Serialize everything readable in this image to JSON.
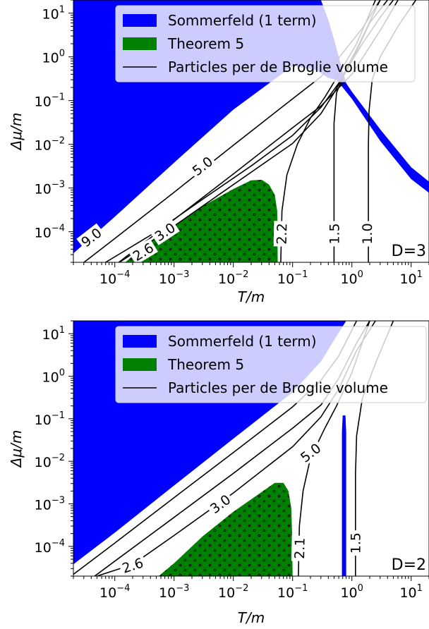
{
  "chart_data": [
    {
      "type": "area",
      "panel_label": "D=3",
      "xlabel": "T/m",
      "ylabel": "Δμ/m",
      "xscale": "log",
      "yscale": "log",
      "xlim": [
        2e-05,
        20
      ],
      "ylim": [
        2e-05,
        20
      ],
      "x_ticks": [
        {
          "exp": -4,
          "base": "10",
          "sup": "−4"
        },
        {
          "exp": -3,
          "base": "10",
          "sup": "−3"
        },
        {
          "exp": -2,
          "base": "10",
          "sup": "−2"
        },
        {
          "exp": -1,
          "base": "10",
          "sup": "−1"
        },
        {
          "exp": 0,
          "base": "10",
          "sup": "0"
        },
        {
          "exp": 1,
          "base": "10",
          "sup": "1"
        }
      ],
      "y_ticks": [
        {
          "exp": -4,
          "base": "10",
          "sup": "−4"
        },
        {
          "exp": -3,
          "base": "10",
          "sup": "−3"
        },
        {
          "exp": -2,
          "base": "10",
          "sup": "−2"
        },
        {
          "exp": -1,
          "base": "10",
          "sup": "−1"
        },
        {
          "exp": 0,
          "base": "10",
          "sup": "0"
        },
        {
          "exp": 1,
          "base": "10",
          "sup": "1"
        }
      ],
      "legend": {
        "position": "top-right",
        "entries": [
          {
            "label": "Sommerfeld (1 term)",
            "kind": "patch",
            "color": "#0000ff"
          },
          {
            "label": "Theorem 5",
            "kind": "patch",
            "color": "#008000"
          },
          {
            "label": "Particles per de Broglie volume",
            "kind": "line",
            "color": "#000000"
          }
        ]
      },
      "sommerfeld_region": [
        [
          2e-05,
          3.2e-05
        ],
        [
          0.0001,
          0.00022
        ],
        [
          0.001,
          0.0038
        ],
        [
          0.01,
          0.062
        ],
        [
          0.1,
          0.62
        ],
        [
          0.25,
          0.5
        ],
        [
          0.4,
          0.33
        ],
        [
          0.55,
          0.3
        ],
        [
          1.0,
          0.11
        ],
        [
          3.0,
          0.012
        ],
        [
          10,
          0.0016
        ],
        [
          20,
          0.00078
        ],
        [
          20,
          0.0014
        ],
        [
          10,
          0.003
        ],
        [
          3.0,
          0.022
        ],
        [
          1.0,
          0.16
        ],
        [
          0.8,
          0.25
        ],
        [
          0.6,
          1.0
        ],
        [
          0.5,
          2.5
        ],
        [
          0.4,
          7
        ],
        [
          0.3,
          20
        ],
        [
          2e-05,
          20
        ]
      ],
      "theorem5_region": [
        [
          0.00015,
          2e-05
        ],
        [
          0.0003,
          4.5e-05
        ],
        [
          0.001,
          0.00014
        ],
        [
          0.003,
          0.00038
        ],
        [
          0.01,
          0.00095
        ],
        [
          0.02,
          0.0015
        ],
        [
          0.03,
          0.00155
        ],
        [
          0.04,
          0.0012
        ],
        [
          0.05,
          0.0007
        ],
        [
          0.055,
          0.0003
        ],
        [
          0.056,
          2e-05
        ]
      ],
      "contours": [
        {
          "level": "9.0",
          "label_at": [
            4e-05,
            7.5e-05
          ],
          "points": [
            [
              2e-05,
              1.3e-05
            ],
            [
              0.0001,
              7e-05
            ],
            [
              0.001,
              0.0008
            ],
            [
              0.01,
              0.0095
            ],
            [
              0.1,
              0.11
            ],
            [
              0.3,
              0.35
            ],
            [
              0.6,
              0.95
            ],
            [
              1.5,
              4.5
            ],
            [
              3,
              20
            ]
          ]
        },
        {
          "level": "5.0",
          "label_at": [
            0.003,
            0.0032
          ],
          "points": [
            [
              2e-05,
              3.2e-06
            ],
            [
              0.0001,
              1.7e-05
            ],
            [
              0.001,
              0.00019
            ],
            [
              0.01,
              0.0021
            ],
            [
              0.1,
              0.024
            ],
            [
              0.3,
              0.075
            ],
            [
              1,
              0.4
            ],
            [
              3,
              4
            ],
            [
              6,
              20
            ]
          ]
        },
        {
          "level": "3.0",
          "label_at": [
            0.0007,
            0.0001
          ],
          "points": [
            [
              0.00012,
              2e-05
            ],
            [
              0.001,
              0.000135
            ],
            [
              0.01,
              0.0012
            ],
            [
              0.1,
              0.0105
            ],
            [
              0.3,
              0.05
            ],
            [
              0.5,
              0.15
            ],
            [
              1,
              0.8
            ],
            [
              2,
              6
            ],
            [
              4,
              20
            ]
          ]
        },
        {
          "level": "2.6",
          "label_at": [
            0.0003,
            3.5e-05
          ],
          "points": [
            [
              7e-05,
              2e-05
            ],
            [
              0.0005,
              0.0001
            ],
            [
              0.003,
              0.00055
            ],
            [
              0.02,
              0.0032
            ],
            [
              0.1,
              0.016
            ],
            [
              0.3,
              0.07
            ],
            [
              0.6,
              0.25
            ],
            [
              1.2,
              1.5
            ],
            [
              3,
              20
            ]
          ]
        },
        {
          "level": "2.2",
          "label_at": [
            0.065,
            9e-05
          ],
          "points": [
            [
              0.063,
              2e-05
            ],
            [
              0.066,
              0.0003
            ],
            [
              0.08,
              0.002
            ],
            [
              0.12,
              0.01
            ],
            [
              0.2,
              0.04
            ],
            [
              0.35,
              0.12
            ],
            [
              0.6,
              0.4
            ],
            [
              1.2,
              2
            ],
            [
              2.5,
              20
            ]
          ]
        },
        {
          "level": "1.5",
          "label_at": [
            0.5,
            9e-05
          ],
          "points": [
            [
              0.5,
              2e-05
            ],
            [
              0.5,
              0.005
            ],
            [
              0.5,
              0.03
            ],
            [
              0.55,
              0.15
            ],
            [
              0.8,
              0.5
            ],
            [
              1.5,
              2
            ],
            [
              3,
              8
            ],
            [
              5,
              20
            ]
          ]
        },
        {
          "level": "1.0",
          "label_at": [
            1.8,
            9e-05
          ],
          "points": [
            [
              1.9,
              2e-05
            ],
            [
              1.9,
              0.01
            ],
            [
              1.95,
              0.06
            ],
            [
              2.2,
              0.3
            ],
            [
              3,
              1
            ],
            [
              6,
              5
            ],
            [
              12,
              20
            ]
          ]
        }
      ]
    },
    {
      "type": "area",
      "panel_label": "D=2",
      "xlabel": "T/m",
      "ylabel": "Δμ/m",
      "xscale": "log",
      "yscale": "log",
      "xlim": [
        2e-05,
        20
      ],
      "ylim": [
        2e-05,
        20
      ],
      "x_ticks": [
        {
          "exp": -4,
          "base": "10",
          "sup": "−4"
        },
        {
          "exp": -3,
          "base": "10",
          "sup": "−3"
        },
        {
          "exp": -2,
          "base": "10",
          "sup": "−2"
        },
        {
          "exp": -1,
          "base": "10",
          "sup": "−1"
        },
        {
          "exp": 0,
          "base": "10",
          "sup": "0"
        },
        {
          "exp": 1,
          "base": "10",
          "sup": "1"
        }
      ],
      "y_ticks": [
        {
          "exp": -4,
          "base": "10",
          "sup": "−4"
        },
        {
          "exp": -3,
          "base": "10",
          "sup": "−3"
        },
        {
          "exp": -2,
          "base": "10",
          "sup": "−2"
        },
        {
          "exp": -1,
          "base": "10",
          "sup": "−1"
        },
        {
          "exp": 0,
          "base": "10",
          "sup": "0"
        },
        {
          "exp": 1,
          "base": "10",
          "sup": "1"
        }
      ],
      "legend": {
        "position": "top-right",
        "entries": [
          {
            "label": "Sommerfeld (1 term)",
            "kind": "patch",
            "color": "#0000ff"
          },
          {
            "label": "Theorem 5",
            "kind": "patch",
            "color": "#008000"
          },
          {
            "label": "Particles per de Broglie volume",
            "kind": "line",
            "color": "#000000"
          }
        ]
      },
      "sommerfeld_region": [
        [
          2e-05,
          3.8e-05
        ],
        [
          0.0001,
          0.00021
        ],
        [
          0.001,
          0.0027
        ],
        [
          0.01,
          0.034
        ],
        [
          0.1,
          0.42
        ],
        [
          0.3,
          2.2
        ],
        [
          0.5,
          7
        ],
        [
          0.8,
          20
        ],
        [
          2e-05,
          20
        ]
      ],
      "sommerfeld_strip": [
        [
          0.68,
          2e-05
        ],
        [
          0.68,
          0.05
        ],
        [
          0.7,
          0.12
        ],
        [
          0.78,
          0.12
        ],
        [
          0.8,
          0.05
        ],
        [
          0.8,
          2e-05
        ]
      ],
      "theorem5_region": [
        [
          0.00055,
          2e-05
        ],
        [
          0.001,
          4e-05
        ],
        [
          0.003,
          0.00017
        ],
        [
          0.01,
          0.00065
        ],
        [
          0.03,
          0.0019
        ],
        [
          0.05,
          0.0031
        ],
        [
          0.07,
          0.0031
        ],
        [
          0.085,
          0.002
        ],
        [
          0.095,
          0.0008
        ],
        [
          0.098,
          0.0002
        ],
        [
          0.1,
          2e-05
        ]
      ],
      "contours": [
        {
          "level": "5.0",
          "label_at": [
            0.2,
            0.016
          ],
          "points": [
            [
              2e-05,
              2.2e-05
            ],
            [
              0.0001,
              0.00012
            ],
            [
              0.001,
              0.0014
            ],
            [
              0.01,
              0.016
            ],
            [
              0.1,
              0.19
            ],
            [
              0.3,
              0.8
            ],
            [
              0.6,
              3
            ],
            [
              1.2,
              20
            ]
          ]
        },
        {
          "level": "3.0",
          "label_at": [
            0.006,
            0.001
          ],
          "points": [
            [
              2e-05,
              8.5e-06
            ],
            [
              0.0001,
              4.5e-05
            ],
            [
              0.001,
              0.00048
            ],
            [
              0.01,
              0.0052
            ],
            [
              0.1,
              0.06
            ],
            [
              0.3,
              0.21
            ],
            [
              0.6,
              0.9
            ],
            [
              1.2,
              6
            ],
            [
              2,
              20
            ]
          ]
        },
        {
          "level": "2.6",
          "label_at": [
            0.0002,
            3.6e-05
          ],
          "points": [
            [
              5e-05,
              2e-05
            ],
            [
              0.0002,
              3.75e-05
            ],
            [
              0.001,
              0.00018
            ],
            [
              0.01,
              0.0018
            ],
            [
              0.1,
              0.022
            ],
            [
              0.3,
              0.11
            ],
            [
              0.6,
              0.5
            ],
            [
              1.2,
              4
            ],
            [
              2.5,
              20
            ]
          ]
        },
        {
          "level": "2.1",
          "label_at": [
            0.13,
            9e-05
          ],
          "points": [
            [
              0.125,
              2e-05
            ],
            [
              0.13,
              0.0003
            ],
            [
              0.15,
              0.002
            ],
            [
              0.2,
              0.012
            ],
            [
              0.35,
              0.06
            ],
            [
              0.55,
              0.2
            ],
            [
              1,
              1.2
            ],
            [
              2,
              20
            ]
          ]
        },
        {
          "level": "1.5",
          "label_at": [
            1.15,
            0.00012
          ],
          "points": [
            [
              1.15,
              2e-05
            ],
            [
              1.15,
              0.005
            ],
            [
              1.2,
              0.04
            ],
            [
              1.5,
              0.3
            ],
            [
              2.5,
              2
            ],
            [
              5,
              20
            ]
          ]
        }
      ]
    }
  ]
}
